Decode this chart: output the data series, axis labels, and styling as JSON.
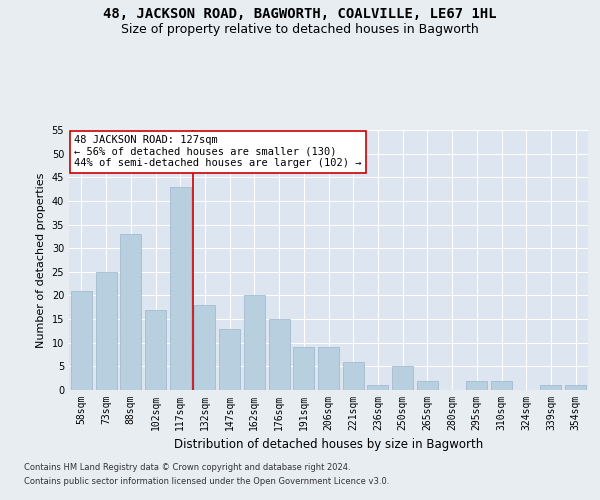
{
  "title": "48, JACKSON ROAD, BAGWORTH, COALVILLE, LE67 1HL",
  "subtitle": "Size of property relative to detached houses in Bagworth",
  "xlabel": "Distribution of detached houses by size in Bagworth",
  "ylabel": "Number of detached properties",
  "categories": [
    "58sqm",
    "73sqm",
    "88sqm",
    "102sqm",
    "117sqm",
    "132sqm",
    "147sqm",
    "162sqm",
    "176sqm",
    "191sqm",
    "206sqm",
    "221sqm",
    "236sqm",
    "250sqm",
    "265sqm",
    "280sqm",
    "295sqm",
    "310sqm",
    "324sqm",
    "339sqm",
    "354sqm"
  ],
  "values": [
    21,
    25,
    33,
    17,
    43,
    18,
    13,
    20,
    15,
    9,
    9,
    6,
    1,
    5,
    2,
    0,
    2,
    2,
    0,
    1,
    1
  ],
  "bar_color": "#b8cfe0",
  "bar_edge_color": "#9ab5cc",
  "vline_x_index": 4.5,
  "vline_color": "#cc0000",
  "annotation_text_line1": "48 JACKSON ROAD: 127sqm",
  "annotation_text_line2": "← 56% of detached houses are smaller (130)",
  "annotation_text_line3": "44% of semi-detached houses are larger (102) →",
  "annotation_box_color": "#ffffff",
  "annotation_box_edge": "#cc0000",
  "ylim": [
    0,
    55
  ],
  "yticks": [
    0,
    5,
    10,
    15,
    20,
    25,
    30,
    35,
    40,
    45,
    50,
    55
  ],
  "background_color": "#e8edf2",
  "plot_bg_color": "#dce5f0",
  "grid_color": "#ffffff",
  "title_fontsize": 10,
  "subtitle_fontsize": 9,
  "xlabel_fontsize": 8.5,
  "ylabel_fontsize": 8,
  "tick_fontsize": 7,
  "ann_fontsize": 7.5,
  "footer_line1": "Contains HM Land Registry data © Crown copyright and database right 2024.",
  "footer_line2": "Contains public sector information licensed under the Open Government Licence v3.0."
}
